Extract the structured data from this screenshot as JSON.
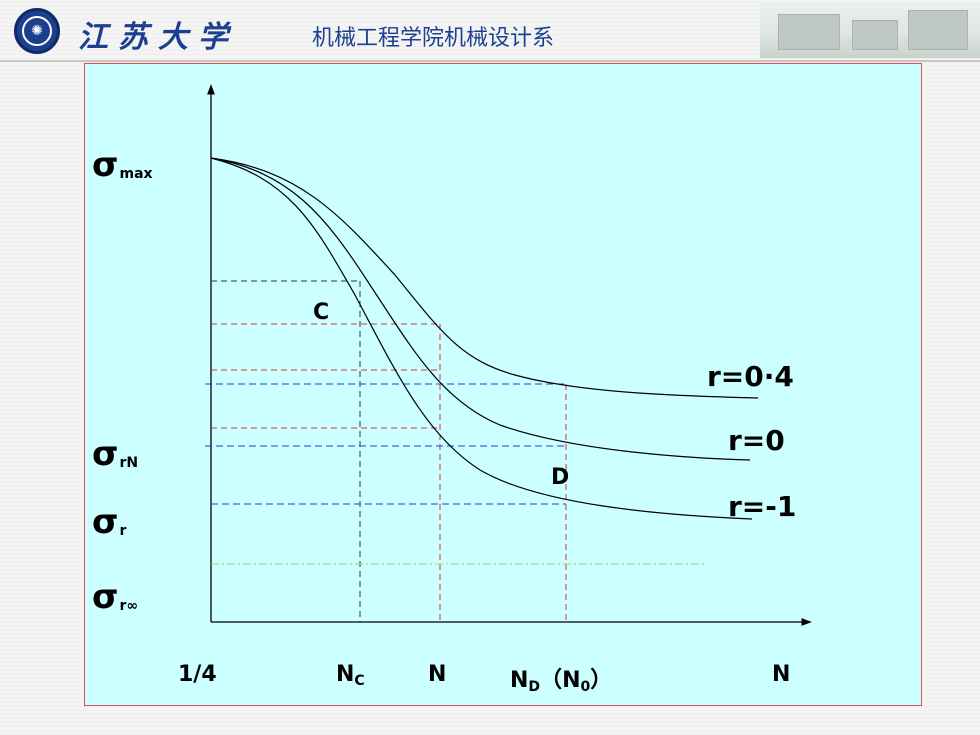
{
  "header": {
    "university": "江苏大学",
    "department": "机械工程学院机械设计系",
    "logo_icon": "university-seal-icon"
  },
  "chart": {
    "y_labels": {
      "max": {
        "base": "σ",
        "sub": "max"
      },
      "rN": {
        "base": "σ",
        "sub": "rN"
      },
      "r": {
        "base": "σ",
        "sub": "r"
      },
      "rinf": {
        "base": "σ",
        "sub": "r∞"
      }
    },
    "x_labels": {
      "quarter": "1/4",
      "nc": {
        "base": "N",
        "sub": "C"
      },
      "n": "N",
      "nd": {
        "base": "N",
        "sub": "D",
        "paren_open": "（",
        "paren_base": "N",
        "paren_sub": "0",
        "paren_close": "）"
      },
      "n_axis": "N"
    },
    "point_labels": {
      "c": "C",
      "d": "D"
    },
    "curve_labels": [
      "r=0·4",
      "r=0",
      "r=-1"
    ],
    "colors": {
      "background": "#ccffff",
      "border": "#e05050",
      "black_dash": "#333333",
      "red_dash": "#e03030",
      "blue_dash": "#2040d0",
      "green_dash": "#a8d060"
    }
  },
  "chart_data": {
    "type": "line",
    "x_tick_labels": [
      "1/4",
      "NC",
      "N",
      "ND（N0）",
      "N"
    ],
    "y_tick_labels": [
      "σmax",
      "σrN",
      "σr",
      "σr∞"
    ],
    "series": [
      {
        "name": "r=0·4"
      },
      {
        "name": "r=0"
      },
      {
        "name": "r=-1"
      }
    ],
    "annotations": [
      "C",
      "D"
    ]
  }
}
